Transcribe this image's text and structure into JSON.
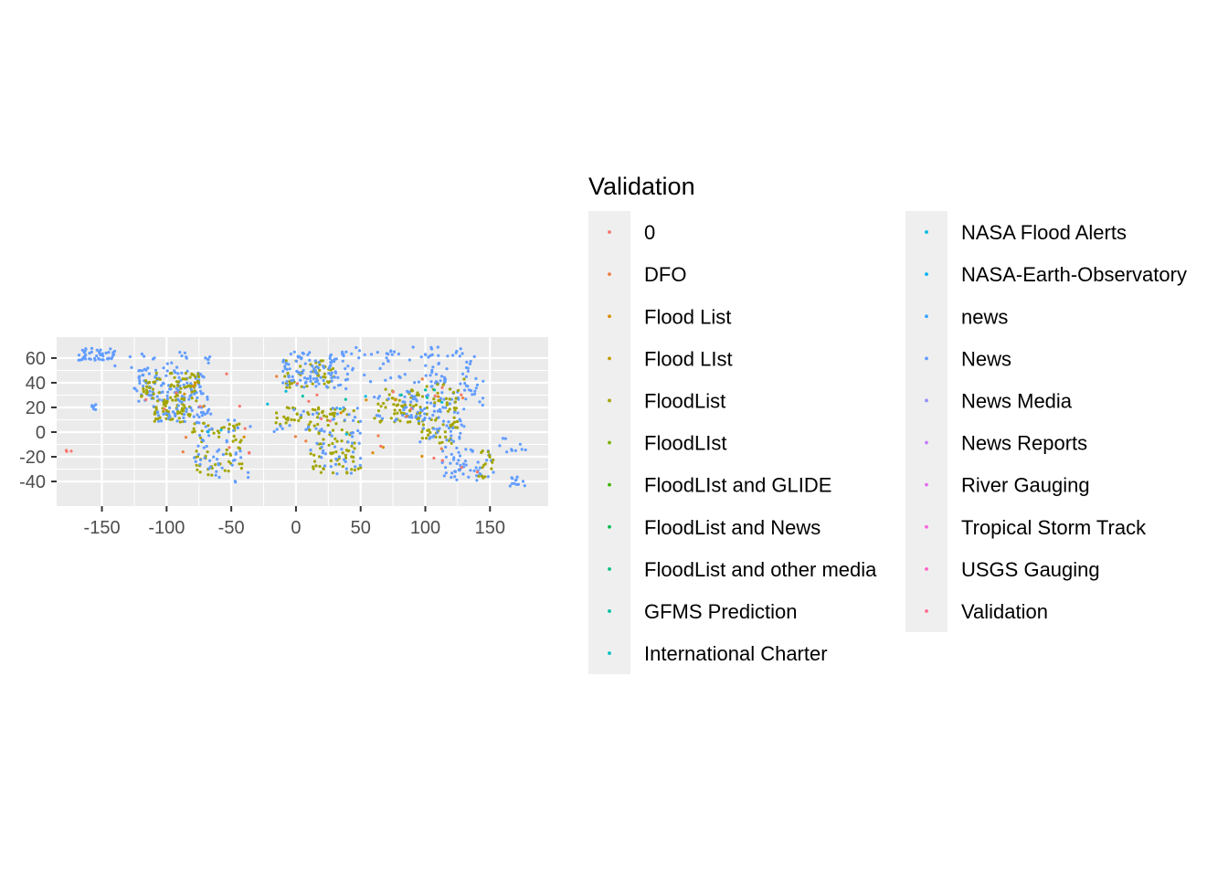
{
  "chart_data": {
    "type": "scatter",
    "title": "",
    "xlabel": "",
    "ylabel": "",
    "xlim": [
      -185,
      195
    ],
    "ylim": [
      -60,
      77
    ],
    "x_ticks": [
      -150,
      -100,
      -50,
      0,
      50,
      100,
      150
    ],
    "y_ticks": [
      -40,
      -20,
      0,
      20,
      40,
      60
    ],
    "grid": true,
    "background": "#ebebeb",
    "legend": {
      "title": "Validation",
      "position": "right",
      "columns": 2,
      "entries": [
        {
          "label": "0",
          "color": "#F8766D"
        },
        {
          "label": "DFO",
          "color": "#EE8043"
        },
        {
          "label": "Flood List",
          "color": "#DC8D00"
        },
        {
          "label": "Flood LIst",
          "color": "#C69900"
        },
        {
          "label": "FloodList",
          "color": "#A3A500"
        },
        {
          "label": "FloodLIst",
          "color": "#7CAE00"
        },
        {
          "label": "FloodLIst and GLIDE",
          "color": "#39B600"
        },
        {
          "label": "FloodList and News",
          "color": "#00BB4E"
        },
        {
          "label": "FloodList and other media",
          "color": "#00BF7D"
        },
        {
          "label": "GFMS Prediction",
          "color": "#00C1A3"
        },
        {
          "label": "International Charter",
          "color": "#00BFC4"
        },
        {
          "label": "NASA Flood Alerts",
          "color": "#00BAE0"
        },
        {
          "label": "NASA-Earth-Observatory",
          "color": "#00B0F6"
        },
        {
          "label": "news",
          "color": "#35A2FF"
        },
        {
          "label": "News",
          "color": "#619CFF"
        },
        {
          "label": "News Media",
          "color": "#9590FF"
        },
        {
          "label": "News Reports",
          "color": "#C77CFF"
        },
        {
          "label": "River Gauging",
          "color": "#E76BF3"
        },
        {
          "label": "Tropical Storm Track",
          "color": "#F962DD"
        },
        {
          "label": "USGS Gauging",
          "color": "#FF61C3"
        },
        {
          "label": "Validation",
          "color": "#FF6C91"
        }
      ]
    },
    "regions": [
      {
        "series": "News",
        "n": 110,
        "lon": [
          -125,
          -68
        ],
        "lat": [
          25,
          50
        ]
      },
      {
        "series": "FloodList",
        "n": 70,
        "lon": [
          -120,
          -75
        ],
        "lat": [
          25,
          48
        ]
      },
      {
        "series": "News",
        "n": 45,
        "lon": [
          -168,
          -140
        ],
        "lat": [
          58,
          68
        ]
      },
      {
        "series": "News",
        "n": 25,
        "lon": [
          -140,
          -60
        ],
        "lat": [
          50,
          65
        ]
      },
      {
        "series": "FloodList",
        "n": 50,
        "lon": [
          -110,
          -80
        ],
        "lat": [
          8,
          25
        ]
      },
      {
        "series": "News",
        "n": 25,
        "lon": [
          -110,
          -80
        ],
        "lat": [
          8,
          25
        ]
      },
      {
        "series": "News",
        "n": 18,
        "lon": [
          -85,
          -60
        ],
        "lat": [
          12,
          22
        ]
      },
      {
        "series": "News",
        "n": 6,
        "lon": [
          -160,
          -154
        ],
        "lat": [
          18,
          23
        ]
      },
      {
        "series": "FloodList",
        "n": 60,
        "lon": [
          -80,
          -40
        ],
        "lat": [
          -35,
          10
        ]
      },
      {
        "series": "News",
        "n": 55,
        "lon": [
          -80,
          -35
        ],
        "lat": [
          -50,
          10
        ]
      },
      {
        "series": "FloodList",
        "n": 45,
        "lon": [
          -10,
          30
        ],
        "lat": [
          36,
          58
        ]
      },
      {
        "series": "News",
        "n": 110,
        "lon": [
          -10,
          40
        ],
        "lat": [
          35,
          65
        ]
      },
      {
        "series": "News",
        "n": 70,
        "lon": [
          40,
          140
        ],
        "lat": [
          40,
          70
        ]
      },
      {
        "series": "FloodList",
        "n": 55,
        "lon": [
          -17,
          50
        ],
        "lat": [
          5,
          20
        ]
      },
      {
        "series": "News",
        "n": 30,
        "lon": [
          -17,
          50
        ],
        "lat": [
          0,
          20
        ]
      },
      {
        "series": "FloodList",
        "n": 60,
        "lon": [
          10,
          50
        ],
        "lat": [
          -34,
          5
        ]
      },
      {
        "series": "News",
        "n": 35,
        "lon": [
          10,
          50
        ],
        "lat": [
          -34,
          5
        ]
      },
      {
        "series": "FloodList",
        "n": 60,
        "lon": [
          60,
          100
        ],
        "lat": [
          8,
          35
        ]
      },
      {
        "series": "News",
        "n": 40,
        "lon": [
          60,
          100
        ],
        "lat": [
          8,
          35
        ]
      },
      {
        "series": "News",
        "n": 50,
        "lon": [
          100,
          145
        ],
        "lat": [
          20,
          50
        ]
      },
      {
        "series": "FloodList",
        "n": 20,
        "lon": [
          100,
          130
        ],
        "lat": [
          20,
          45
        ]
      },
      {
        "series": "FloodList",
        "n": 45,
        "lon": [
          95,
          125
        ],
        "lat": [
          -10,
          20
        ]
      },
      {
        "series": "News",
        "n": 45,
        "lon": [
          95,
          130
        ],
        "lat": [
          -10,
          20
        ]
      },
      {
        "series": "News",
        "n": 55,
        "lon": [
          113,
          153
        ],
        "lat": [
          -40,
          -12
        ]
      },
      {
        "series": "FloodList",
        "n": 15,
        "lon": [
          140,
          153
        ],
        "lat": [
          -38,
          -15
        ]
      },
      {
        "series": "News",
        "n": 12,
        "lon": [
          165,
          178
        ],
        "lat": [
          -46,
          -35
        ]
      },
      {
        "series": "News",
        "n": 10,
        "lon": [
          155,
          180
        ],
        "lat": [
          -20,
          -5
        ]
      },
      {
        "series": "0",
        "n": 25,
        "lon": [
          -120,
          150
        ],
        "lat": [
          -35,
          55
        ]
      },
      {
        "series": "DFO",
        "n": 10,
        "lon": [
          -100,
          130
        ],
        "lat": [
          -20,
          50
        ]
      },
      {
        "series": "Flood List",
        "n": 12,
        "lon": [
          -100,
          130
        ],
        "lat": [
          -20,
          50
        ]
      },
      {
        "series": "NASA Flood Alerts",
        "n": 8,
        "lon": [
          -90,
          130
        ],
        "lat": [
          -20,
          40
        ]
      },
      {
        "series": "GFMS Prediction",
        "n": 6,
        "lon": [
          0,
          120
        ],
        "lat": [
          -10,
          35
        ]
      },
      {
        "series": "0",
        "n": 3,
        "lon": [
          -178,
          -170
        ],
        "lat": [
          -16,
          -13
        ]
      }
    ]
  }
}
